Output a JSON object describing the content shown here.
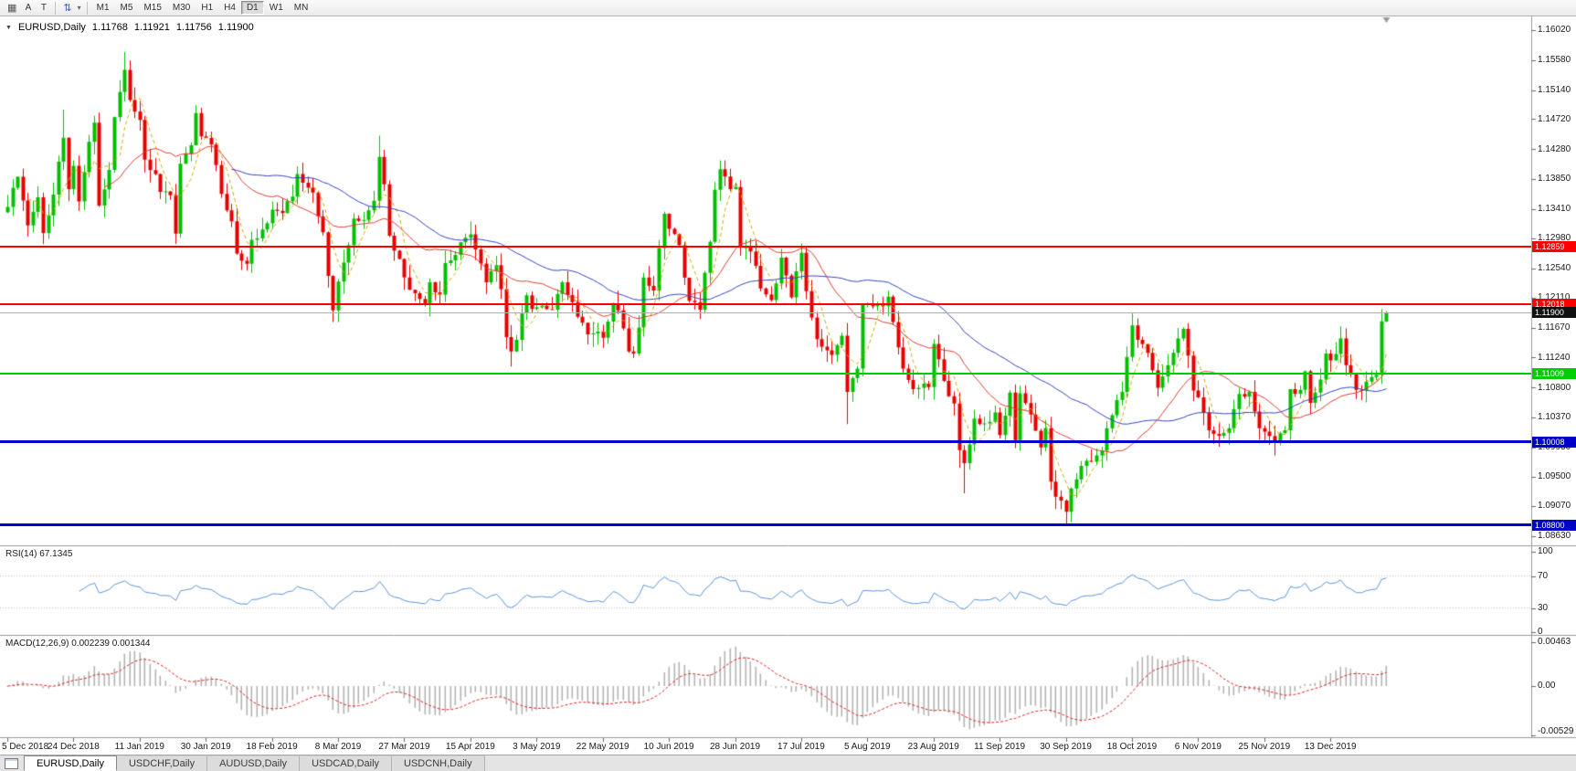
{
  "toolbar": {
    "grid_icon": "▦",
    "a_button": "A",
    "t_button": "T",
    "scale_icon": "⇅",
    "caret_icon": "▾",
    "timeframes": [
      "M1",
      "M5",
      "M15",
      "M30",
      "H1",
      "H4",
      "D1",
      "W1",
      "MN"
    ],
    "active_timeframe": "D1"
  },
  "readout": {
    "collapse_icon": "▼",
    "symbol": "EURUSD,Daily",
    "open": "1.11768",
    "high": "1.11921",
    "low": "1.11756",
    "close": "1.11900"
  },
  "indicators": {
    "rsi": {
      "label": "RSI(14) 67.1345",
      "period": 14,
      "value": 67.1345,
      "axis_ticks": [
        "100",
        "70",
        "30",
        "0"
      ],
      "levels": [
        70,
        30
      ],
      "line_color": "#5b93d9"
    },
    "macd": {
      "label": "MACD(12,26,9) 0.002239 0.001344",
      "fast": 12,
      "slow": 26,
      "signal": 9,
      "macd_value": 0.002239,
      "signal_value": 0.001344,
      "axis_ticks": [
        "0.00463",
        "0.00",
        "-0.00529"
      ],
      "histogram_color": "#b4b4b4",
      "signal_color": "#dd2222"
    }
  },
  "hlines": [
    {
      "price": 1.12859,
      "label": "1.12859",
      "color": "#ff0000",
      "thickness": 2
    },
    {
      "price": 1.12018,
      "label": "1.12018",
      "color": "#ff0000",
      "thickness": 2
    },
    {
      "price": 1.11009,
      "label": "1.11009",
      "color": "#00cc00",
      "thickness": 2
    },
    {
      "price": 1.10008,
      "label": "1.10008",
      "color": "#0000c8",
      "thickness": 3
    },
    {
      "price": 1.088,
      "label": "1.08800",
      "color": "#0000c8",
      "thickness": 3
    }
  ],
  "current_price": {
    "value": 1.119,
    "label": "1.11900",
    "line_color": "#b0b0b0",
    "badge_color": "#111111"
  },
  "tabs": {
    "items": [
      {
        "label": "EURUSD,Daily",
        "active": true
      },
      {
        "label": "USDCHF,Daily",
        "active": false
      },
      {
        "label": "AUDUSD,Daily",
        "active": false
      },
      {
        "label": "USDCAD,Daily",
        "active": false
      },
      {
        "label": "USDCNH,Daily",
        "active": false
      }
    ]
  },
  "chart_data": {
    "type": "candlestick",
    "symbol": "EURUSD",
    "timeframe": "Daily",
    "bars_total": 272,
    "ylim": [
      1.085,
      1.1622
    ],
    "up_color": "#00c000",
    "down_color": "#e80000",
    "current_bar": {
      "open": 1.11768,
      "high": 1.11921,
      "low": 1.11756,
      "close": 1.119
    },
    "y_ticks": [
      "1.16020",
      "1.15580",
      "1.15140",
      "1.14720",
      "1.14280",
      "1.13850",
      "1.13410",
      "1.12980",
      "1.12540",
      "1.12110",
      "1.11670",
      "1.11240",
      "1.10800",
      "1.10370",
      "1.09930",
      "1.09500",
      "1.09070",
      "1.08630"
    ],
    "x_labels": [
      {
        "text": "5 Dec 2018",
        "bar": 0
      },
      {
        "text": "24 Dec 2018",
        "bar": 13
      },
      {
        "text": "11 Jan 2019",
        "bar": 26
      },
      {
        "text": "30 Jan 2019",
        "bar": 39
      },
      {
        "text": "18 Feb 2019",
        "bar": 52
      },
      {
        "text": "8 Mar 2019",
        "bar": 65
      },
      {
        "text": "27 Mar 2019",
        "bar": 78
      },
      {
        "text": "15 Apr 2019",
        "bar": 91
      },
      {
        "text": "3 May 2019",
        "bar": 104
      },
      {
        "text": "22 May 2019",
        "bar": 117
      },
      {
        "text": "10 Jun 2019",
        "bar": 130
      },
      {
        "text": "28 Jun 2019",
        "bar": 143
      },
      {
        "text": "17 Jul 2019",
        "bar": 156
      },
      {
        "text": "5 Aug 2019",
        "bar": 169
      },
      {
        "text": "23 Aug 2019",
        "bar": 182
      },
      {
        "text": "11 Sep 2019",
        "bar": 195
      },
      {
        "text": "30 Sep 2019",
        "bar": 208
      },
      {
        "text": "18 Oct 2019",
        "bar": 221
      },
      {
        "text": "6 Nov 2019",
        "bar": 234
      },
      {
        "text": "25 Nov 2019",
        "bar": 247
      },
      {
        "text": "13 Dec 2019",
        "bar": 260
      }
    ],
    "moving_averages": [
      {
        "period": 5,
        "color": "#d2a800",
        "dash": [
          4,
          3
        ]
      },
      {
        "period": 20,
        "color": "#e03c2f",
        "dash": []
      },
      {
        "period": 45,
        "color": "#3344bb",
        "dash": []
      }
    ],
    "close_waypoints": [
      [
        0,
        1.1344
      ],
      [
        2,
        1.1388
      ],
      [
        4,
        1.1317
      ],
      [
        6,
        1.1358
      ],
      [
        7,
        1.1306
      ],
      [
        9,
        1.1362
      ],
      [
        11,
        1.1445
      ],
      [
        12,
        1.137
      ],
      [
        13,
        1.1404
      ],
      [
        14,
        1.1352
      ],
      [
        16,
        1.1439
      ],
      [
        17,
        1.1467
      ],
      [
        18,
        1.1346
      ],
      [
        20,
        1.1398
      ],
      [
        21,
        1.1475
      ],
      [
        23,
        1.1544
      ],
      [
        24,
        1.15
      ],
      [
        26,
        1.1471
      ],
      [
        27,
        1.1413
      ],
      [
        29,
        1.1392
      ],
      [
        30,
        1.1366
      ],
      [
        32,
        1.1361
      ],
      [
        33,
        1.1305
      ],
      [
        34,
        1.1407
      ],
      [
        36,
        1.1434
      ],
      [
        37,
        1.1481
      ],
      [
        38,
        1.1447
      ],
      [
        40,
        1.1435
      ],
      [
        42,
        1.1363
      ],
      [
        44,
        1.1323
      ],
      [
        45,
        1.1276
      ],
      [
        47,
        1.1261
      ],
      [
        48,
        1.1296
      ],
      [
        50,
        1.1311
      ],
      [
        52,
        1.134
      ],
      [
        54,
        1.1335
      ],
      [
        56,
        1.1359
      ],
      [
        57,
        1.1392
      ],
      [
        59,
        1.1372
      ],
      [
        60,
        1.1365
      ],
      [
        62,
        1.1307
      ],
      [
        64,
        1.1193
      ],
      [
        65,
        1.1235
      ],
      [
        67,
        1.1288
      ],
      [
        68,
        1.1327
      ],
      [
        70,
        1.1325
      ],
      [
        72,
        1.1353
      ],
      [
        73,
        1.1417
      ],
      [
        74,
        1.1377
      ],
      [
        75,
        1.1302
      ],
      [
        77,
        1.1268
      ],
      [
        79,
        1.1223
      ],
      [
        80,
        1.1218
      ],
      [
        82,
        1.1203
      ],
      [
        83,
        1.1234
      ],
      [
        85,
        1.1216
      ],
      [
        86,
        1.1262
      ],
      [
        88,
        1.1274
      ],
      [
        90,
        1.1299
      ],
      [
        91,
        1.1304
      ],
      [
        92,
        1.1282
      ],
      [
        94,
        1.1234
      ],
      [
        96,
        1.1259
      ],
      [
        97,
        1.1224
      ],
      [
        98,
        1.1154
      ],
      [
        99,
        1.1133
      ],
      [
        100,
        1.115
      ],
      [
        102,
        1.1215
      ],
      [
        103,
        1.1195
      ],
      [
        105,
        1.12
      ],
      [
        107,
        1.1194
      ],
      [
        109,
        1.1234
      ],
      [
        111,
        1.1205
      ],
      [
        113,
        1.1175
      ],
      [
        114,
        1.1158
      ],
      [
        116,
        1.1162
      ],
      [
        117,
        1.1153
      ],
      [
        119,
        1.1203
      ],
      [
        120,
        1.1193
      ],
      [
        122,
        1.1133
      ],
      [
        123,
        1.113
      ],
      [
        124,
        1.1168
      ],
      [
        125,
        1.1241
      ],
      [
        127,
        1.1222
      ],
      [
        129,
        1.1334
      ],
      [
        130,
        1.1312
      ],
      [
        132,
        1.1288
      ],
      [
        134,
        1.1207
      ],
      [
        136,
        1.1194
      ],
      [
        138,
        1.1293
      ],
      [
        139,
        1.1369
      ],
      [
        140,
        1.1399
      ],
      [
        142,
        1.137
      ],
      [
        143,
        1.1373
      ],
      [
        144,
        1.1285
      ],
      [
        146,
        1.1279
      ],
      [
        148,
        1.1225
      ],
      [
        150,
        1.1208
      ],
      [
        152,
        1.127
      ],
      [
        154,
        1.1212
      ],
      [
        156,
        1.1277
      ],
      [
        157,
        1.1221
      ],
      [
        159,
        1.1151
      ],
      [
        160,
        1.114
      ],
      [
        162,
        1.1128
      ],
      [
        164,
        1.1156
      ],
      [
        165,
        1.1074
      ],
      [
        167,
        1.1108
      ],
      [
        168,
        1.1202
      ],
      [
        170,
        1.1199
      ],
      [
        172,
        1.1199
      ],
      [
        173,
        1.1213
      ],
      [
        175,
        1.1139
      ],
      [
        176,
        1.1108
      ],
      [
        178,
        1.1078
      ],
      [
        180,
        1.1086
      ],
      [
        181,
        1.1081
      ],
      [
        182,
        1.1144
      ],
      [
        184,
        1.109
      ],
      [
        186,
        1.1057
      ],
      [
        187,
        1.0989
      ],
      [
        188,
        1.097
      ],
      [
        190,
        1.1035
      ],
      [
        192,
        1.1028
      ],
      [
        194,
        1.1044
      ],
      [
        195,
        1.1011
      ],
      [
        197,
        1.1073
      ],
      [
        198,
        1.1003
      ],
      [
        199,
        1.1072
      ],
      [
        201,
        1.1041
      ],
      [
        203,
        1.0993
      ],
      [
        204,
        1.1021
      ],
      [
        205,
        1.0943
      ],
      [
        206,
        1.0921
      ],
      [
        208,
        1.0899
      ],
      [
        209,
        1.0933
      ],
      [
        211,
        1.0966
      ],
      [
        213,
        1.0972
      ],
      [
        215,
        1.0988
      ],
      [
        217,
        1.104
      ],
      [
        219,
        1.1074
      ],
      [
        220,
        1.1125
      ],
      [
        221,
        1.1171
      ],
      [
        222,
        1.115
      ],
      [
        224,
        1.1131
      ],
      [
        226,
        1.108
      ],
      [
        228,
        1.1113
      ],
      [
        230,
        1.1152
      ],
      [
        231,
        1.1166
      ],
      [
        232,
        1.1127
      ],
      [
        233,
        1.1076
      ],
      [
        234,
        1.1066
      ],
      [
        236,
        1.1018
      ],
      [
        238,
        1.101
      ],
      [
        240,
        1.1021
      ],
      [
        242,
        1.1071
      ],
      [
        244,
        1.1074
      ],
      [
        246,
        1.1021
      ],
      [
        247,
        1.1016
      ],
      [
        249,
        1.1002
      ],
      [
        251,
        1.1018
      ],
      [
        252,
        1.1078
      ],
      [
        254,
        1.1077
      ],
      [
        255,
        1.1104
      ],
      [
        256,
        1.1058
      ],
      [
        258,
        1.1092
      ],
      [
        259,
        1.113
      ],
      [
        260,
        1.112
      ],
      [
        262,
        1.1152
      ],
      [
        263,
        1.1113
      ],
      [
        265,
        1.1077
      ],
      [
        267,
        1.1089
      ],
      [
        269,
        1.1099
      ],
      [
        270,
        1.1177
      ],
      [
        271,
        1.119
      ]
    ],
    "wick_overrides": {
      "11": {
        "high": 1.1486
      },
      "23": {
        "high": 1.157
      },
      "57": {
        "high": 1.1403
      },
      "64": {
        "low": 1.1176
      },
      "73": {
        "high": 1.1448
      },
      "99": {
        "low": 1.1111
      },
      "140": {
        "high": 1.1412
      },
      "165": {
        "low": 1.1027
      },
      "187": {
        "low": 1.0963
      },
      "188": {
        "low": 1.0926
      },
      "206": {
        "low": 1.0905
      },
      "208": {
        "low": 1.0879
      },
      "249": {
        "low": 1.0981
      }
    }
  }
}
